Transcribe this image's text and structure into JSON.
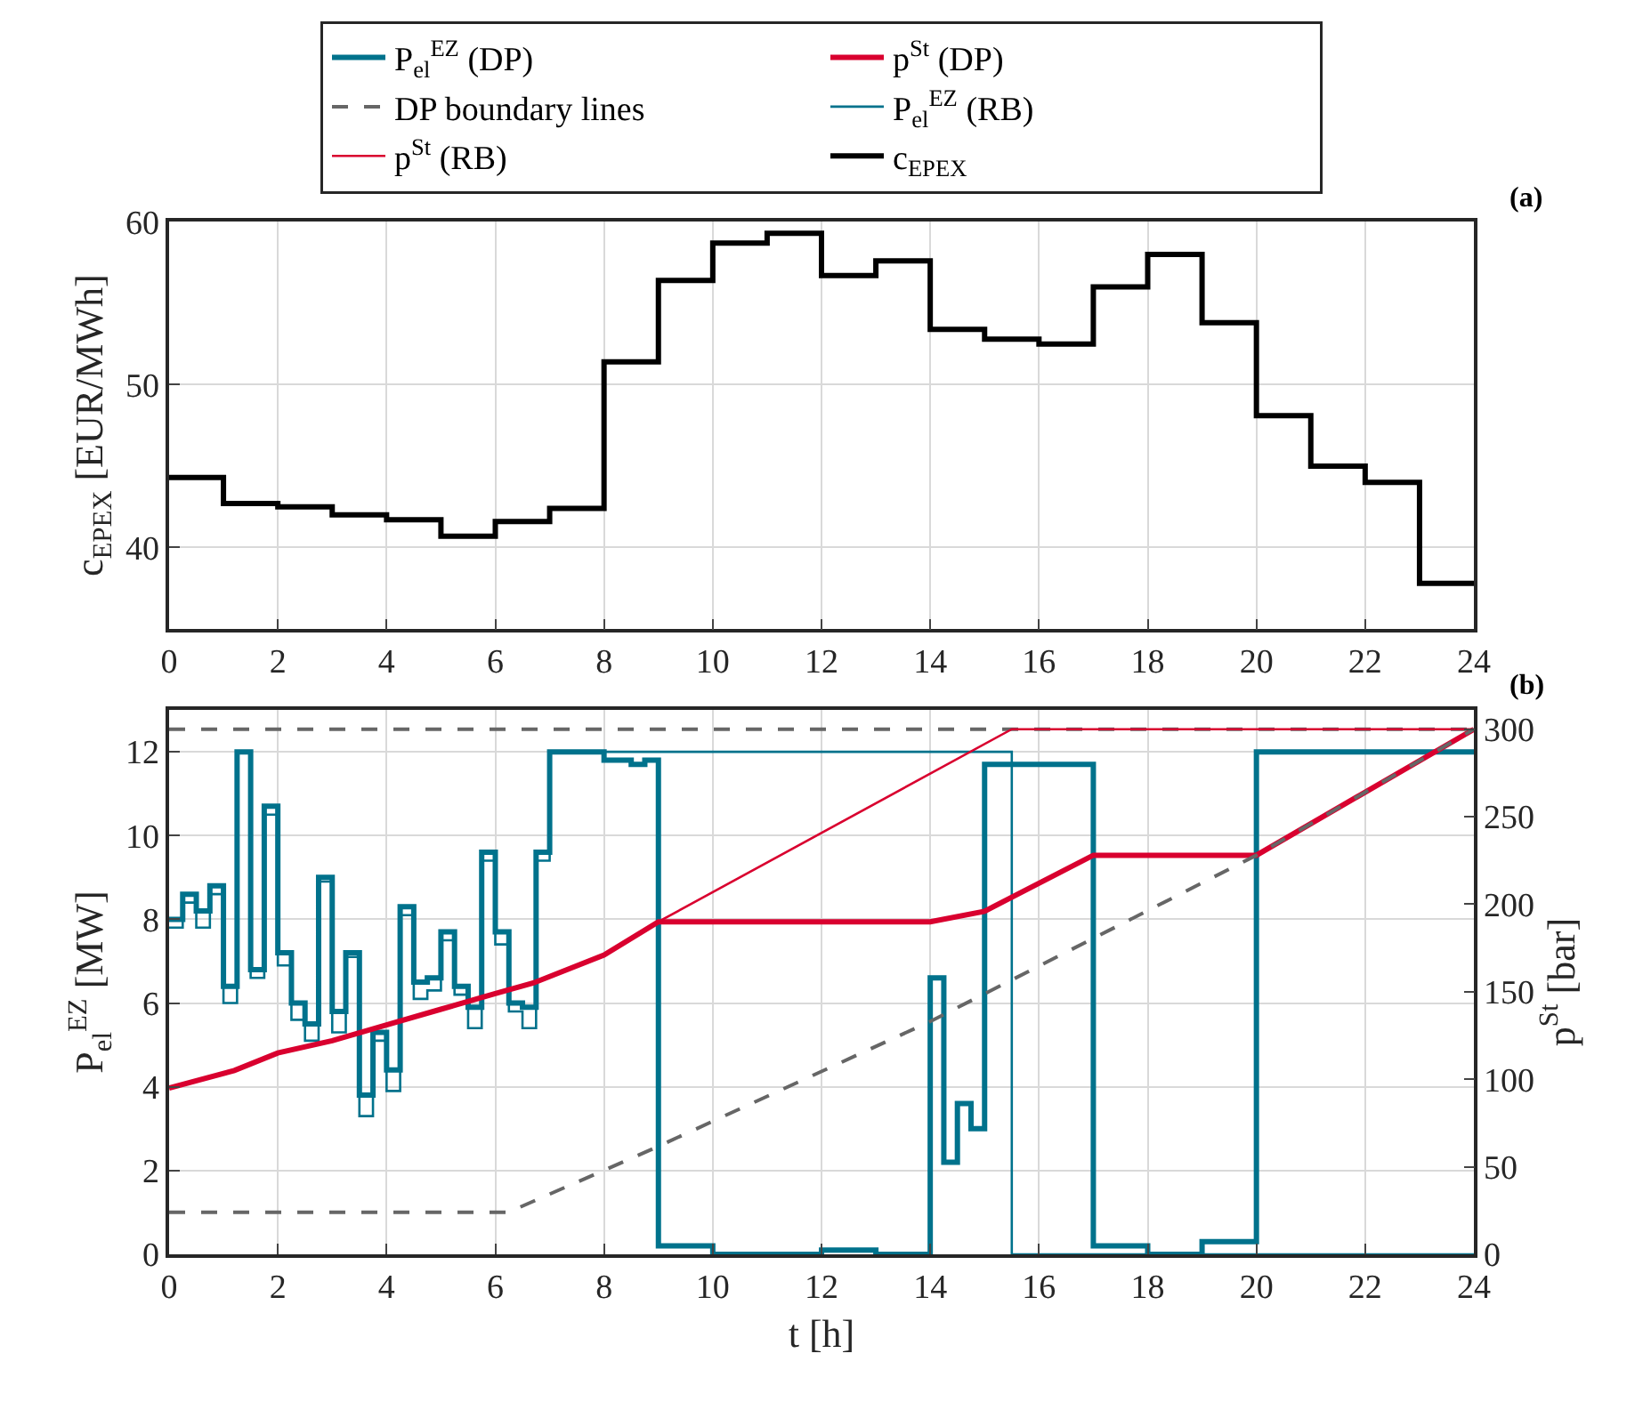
{
  "chart_data": [
    {
      "type": "step",
      "ylabel": "c$_{EPEX}$ [EUR/MWh]",
      "annotations": [
        "(a)"
      ],
      "xlim": [
        0,
        24
      ],
      "xticks": [
        0,
        2,
        4,
        6,
        8,
        10,
        12,
        14,
        16,
        18,
        20,
        22,
        24
      ],
      "ylim": [
        35,
        60
      ],
      "yticks": [
        40,
        50,
        60
      ],
      "grid": true,
      "legend": "top",
      "series": [
        {
          "name": "c$_{EPEX}$",
          "color": "#000000",
          "x": [
            0,
            1,
            2,
            3,
            4,
            5,
            6,
            7,
            8,
            9,
            10,
            11,
            12,
            13,
            14,
            15,
            16,
            17,
            18,
            19,
            20,
            21,
            22,
            23,
            24
          ],
          "values": [
            44.3,
            42.7,
            42.5,
            42.0,
            41.7,
            40.7,
            41.6,
            42.4,
            51.4,
            56.4,
            58.7,
            59.3,
            56.7,
            57.6,
            53.4,
            52.8,
            52.5,
            56.0,
            58.0,
            53.8,
            48.1,
            45.0,
            44.0,
            37.8,
            37.8
          ]
        }
      ]
    },
    {
      "type": "step",
      "xlabel": "t [h]",
      "ylabel": "P$_{el}$$^{EZ}$ [MW]",
      "y2label": "p$^{St}$ [bar]",
      "annotations": [
        "(b)"
      ],
      "xlim": [
        0,
        24
      ],
      "xticks": [
        0,
        2,
        4,
        6,
        8,
        10,
        12,
        14,
        16,
        18,
        20,
        22,
        24
      ],
      "ylim": [
        0,
        13
      ],
      "yticks": [
        0,
        2,
        4,
        6,
        8,
        10,
        12
      ],
      "y2lim": [
        0,
        311
      ],
      "y2ticks": [
        0,
        50,
        100,
        150,
        200,
        250,
        300
      ],
      "grid": true,
      "legend": "top",
      "series": [
        {
          "name": "P$_{el}$$^{EZ}$ (DP)",
          "color": "#00728c",
          "type": "step",
          "x": [
            0,
            0.25,
            0.5,
            0.75,
            1,
            1.25,
            1.5,
            1.75,
            2,
            2.25,
            2.5,
            2.75,
            3,
            3.25,
            3.5,
            3.75,
            4,
            4.25,
            4.5,
            4.75,
            5,
            5.25,
            5.5,
            5.75,
            6,
            6.25,
            6.5,
            6.75,
            7,
            8,
            8.5,
            8.75,
            9,
            10,
            12,
            13,
            14,
            14.25,
            14.5,
            14.75,
            15,
            16,
            17,
            18,
            19,
            20,
            24
          ],
          "values": [
            8.0,
            8.6,
            8.2,
            8.8,
            6.4,
            12.0,
            6.8,
            10.7,
            7.2,
            6.0,
            5.5,
            9.0,
            5.8,
            7.2,
            3.8,
            5.3,
            4.4,
            8.3,
            6.5,
            6.6,
            7.7,
            6.4,
            5.9,
            9.6,
            7.7,
            6.0,
            5.9,
            9.6,
            12.0,
            11.8,
            11.7,
            11.8,
            0.2,
            0.0,
            0.1,
            0.0,
            6.6,
            2.2,
            3.6,
            3.0,
            11.7,
            11.7,
            0.2,
            0.0,
            0.3,
            12.0,
            12.0
          ]
        },
        {
          "name": "p$^{St}$ (DP)",
          "color": "#d9002f",
          "type": "line",
          "axis": "y2",
          "x": [
            0,
            1.2,
            2,
            3,
            4,
            5,
            6,
            6.7,
            8,
            9,
            14,
            15,
            17,
            20,
            24
          ],
          "values": [
            95,
            105,
            115,
            122,
            131,
            140,
            149,
            155,
            171,
            190,
            190,
            196,
            228,
            228,
            300
          ]
        },
        {
          "name": "DP boundary lines",
          "color": "#666666",
          "type": "line",
          "axis": "y2",
          "line_style": "dashed",
          "x": [
            0,
            24
          ],
          "values": [
            300,
            300
          ]
        },
        {
          "name": "P$_{el}$$^{EZ}$ (RB)",
          "color": "#00728c",
          "type": "step",
          "x": [
            0,
            0.25,
            0.5,
            0.75,
            1,
            1.25,
            1.5,
            1.75,
            2,
            2.25,
            2.5,
            2.75,
            3,
            3.25,
            3.5,
            3.75,
            4,
            4.25,
            4.5,
            4.75,
            5,
            5.25,
            5.5,
            5.75,
            6,
            6.25,
            6.5,
            6.75,
            7,
            15.5,
            24
          ],
          "values": [
            7.8,
            8.4,
            7.8,
            8.6,
            6.0,
            12.0,
            6.6,
            10.5,
            6.9,
            5.6,
            5.1,
            8.9,
            5.3,
            7.1,
            3.3,
            5.1,
            3.9,
            8.1,
            6.1,
            6.3,
            7.5,
            6.2,
            5.4,
            9.4,
            7.4,
            5.8,
            5.4,
            9.4,
            12.0,
            0.0,
            0.0
          ]
        },
        {
          "name": "p$^{St}$ (RB)",
          "color": "#d9002f",
          "type": "line",
          "axis": "y2",
          "x": [
            0,
            1.2,
            2,
            3,
            4,
            5,
            6,
            6.7,
            8,
            9,
            15.5,
            24
          ],
          "values": [
            95,
            105,
            115,
            122,
            131,
            140,
            149,
            155,
            171,
            190,
            300,
            300
          ]
        },
        {
          "color": "#666666",
          "type": "line",
          "axis": "y2",
          "line_style": "dashed",
          "x": [
            0,
            6.24,
            8.88,
            14,
            20,
            24
          ],
          "values": [
            24,
            24,
            60,
            133,
            228,
            300
          ]
        }
      ]
    }
  ]
}
